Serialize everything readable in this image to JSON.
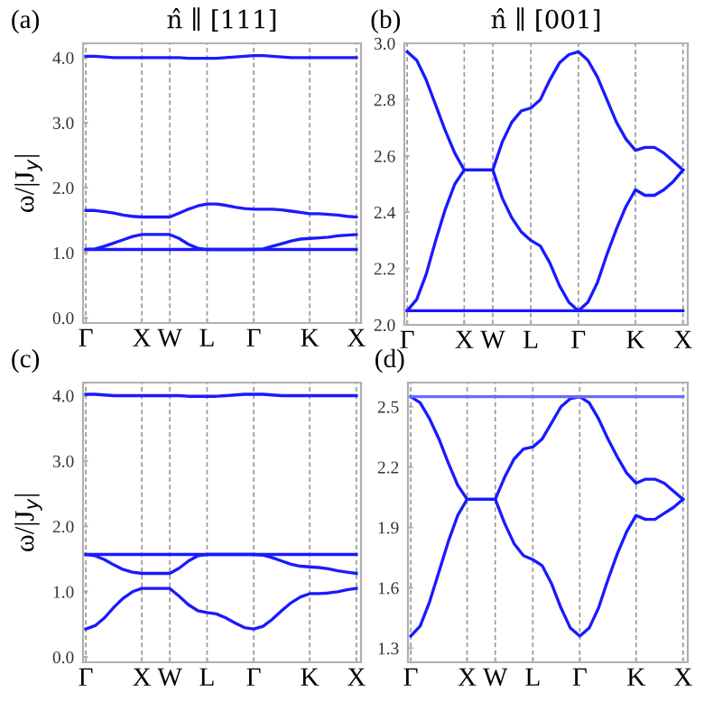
{
  "chart_data": [
    {
      "type": "line",
      "title": "n̂ ∥ [111]",
      "ylabel": "ω/|J$_{y}$|",
      "annotations": [
        "(a)"
      ],
      "grid": "x",
      "categories": [
        "Γ",
        null,
        null,
        null,
        null,
        null,
        "X",
        null,
        null,
        "W",
        null,
        null,
        null,
        "L",
        null,
        null,
        null,
        null,
        "Γ",
        null,
        null,
        null,
        null,
        null,
        "K",
        null,
        null,
        null,
        null,
        "X"
      ],
      "ylim": [
        -0.08,
        4.22
      ],
      "yticks": [
        {
          "value": 0,
          "label": "0.0"
        },
        {
          "value": 1,
          "label": "1.0"
        },
        {
          "value": 2,
          "label": "2.0"
        },
        {
          "value": 3,
          "label": "3.0"
        },
        {
          "value": 4,
          "label": "4.0"
        }
      ],
      "series": [
        {
          "color": "#1a1aff",
          "values": [
            1.05,
            1.05,
            1.05,
            1.05,
            1.05,
            1.05,
            1.05,
            1.05,
            1.05,
            1.05,
            1.05,
            1.05,
            1.05,
            1.05,
            1.05,
            1.05,
            1.05,
            1.05,
            1.05,
            1.05,
            1.05,
            1.05,
            1.05,
            1.05,
            1.05,
            1.05,
            1.05,
            1.05,
            1.05,
            1.05
          ]
        },
        {
          "color": "#1a1aff",
          "values": [
            1.05,
            1.06,
            1.1,
            1.15,
            1.2,
            1.25,
            1.28,
            1.28,
            1.28,
            1.28,
            1.22,
            1.13,
            1.07,
            1.05,
            1.05,
            1.05,
            1.05,
            1.05,
            1.05,
            1.06,
            1.1,
            1.14,
            1.18,
            1.21,
            1.22,
            1.23,
            1.24,
            1.26,
            1.27,
            1.28
          ]
        },
        {
          "color": "#1a1aff",
          "values": [
            1.65,
            1.65,
            1.63,
            1.61,
            1.58,
            1.56,
            1.55,
            1.55,
            1.55,
            1.55,
            1.61,
            1.67,
            1.72,
            1.75,
            1.75,
            1.73,
            1.7,
            1.68,
            1.67,
            1.67,
            1.67,
            1.66,
            1.64,
            1.62,
            1.6,
            1.6,
            1.59,
            1.58,
            1.56,
            1.55
          ]
        },
        {
          "color": "#1a1aff",
          "values": [
            4.02,
            4.02,
            4.01,
            4.0,
            4.0,
            4.0,
            4.0,
            4.0,
            4.0,
            4.0,
            4.0,
            3.99,
            3.99,
            3.99,
            3.99,
            4.0,
            4.01,
            4.02,
            4.03,
            4.03,
            4.02,
            4.01,
            4.0,
            4.0,
            4.0,
            4.0,
            4.0,
            4.0,
            4.0,
            4.0
          ]
        }
      ]
    },
    {
      "type": "line",
      "title": "n̂ ∥ [001]",
      "annotations": [
        "(b)"
      ],
      "grid": "x",
      "categories": [
        "Γ",
        null,
        null,
        null,
        null,
        null,
        "X",
        null,
        null,
        "W",
        null,
        null,
        null,
        "L",
        null,
        null,
        null,
        null,
        "Γ",
        null,
        null,
        null,
        null,
        null,
        "K",
        null,
        null,
        null,
        null,
        "X"
      ],
      "ylim": [
        2.0,
        3.0
      ],
      "yticks": [
        {
          "value": 2.0,
          "label": "2.0"
        },
        2.2,
        2.4,
        2.6,
        2.8,
        {
          "value": 3.0,
          "label": "3.0"
        }
      ],
      "series": [
        {
          "color": "#1a1aff",
          "values": [
            2.05,
            2.05,
            2.05,
            2.05,
            2.05,
            2.05,
            2.05,
            2.05,
            2.05,
            2.05,
            2.05,
            2.05,
            2.05,
            2.05,
            2.05,
            2.05,
            2.05,
            2.05,
            2.05,
            2.05,
            2.05,
            2.05,
            2.05,
            2.05,
            2.05,
            2.05,
            2.05,
            2.05,
            2.05,
            2.05
          ]
        },
        {
          "color": "#1a1aff",
          "values": [
            2.05,
            2.09,
            2.18,
            2.3,
            2.41,
            2.5,
            2.55,
            2.55,
            2.55,
            2.55,
            2.45,
            2.38,
            2.33,
            2.3,
            2.28,
            2.22,
            2.14,
            2.08,
            2.05,
            2.08,
            2.15,
            2.25,
            2.34,
            2.42,
            2.48,
            2.46,
            2.46,
            2.48,
            2.51,
            2.55
          ]
        },
        {
          "color": "#1a1aff",
          "values": [
            2.97,
            2.94,
            2.87,
            2.78,
            2.69,
            2.61,
            2.55,
            2.55,
            2.55,
            2.55,
            2.65,
            2.72,
            2.76,
            2.77,
            2.8,
            2.87,
            2.93,
            2.96,
            2.97,
            2.94,
            2.88,
            2.8,
            2.72,
            2.66,
            2.62,
            2.63,
            2.63,
            2.61,
            2.58,
            2.55
          ]
        }
      ]
    },
    {
      "type": "line",
      "ylabel": "ω/|J$_{y}$|",
      "annotations": [
        "(c)"
      ],
      "grid": "x",
      "categories": [
        "Γ",
        null,
        null,
        null,
        null,
        null,
        "X",
        null,
        null,
        "W",
        null,
        null,
        null,
        "L",
        null,
        null,
        null,
        null,
        "Γ",
        null,
        null,
        null,
        null,
        null,
        "K",
        null,
        null,
        null,
        null,
        "X"
      ],
      "ylim": [
        -0.08,
        4.2
      ],
      "yticks": [
        {
          "value": 0,
          "label": "0.0"
        },
        {
          "value": 1,
          "label": "1.0"
        },
        {
          "value": 2,
          "label": "2.0"
        },
        {
          "value": 3,
          "label": "3.0"
        },
        {
          "value": 4,
          "label": "4.0"
        }
      ],
      "series": [
        {
          "color": "#1a1aff",
          "values": [
            0.43,
            0.48,
            0.6,
            0.76,
            0.9,
            1.0,
            1.05,
            1.05,
            1.05,
            1.05,
            0.93,
            0.8,
            0.71,
            0.68,
            0.66,
            0.6,
            0.52,
            0.45,
            0.43,
            0.47,
            0.58,
            0.71,
            0.83,
            0.92,
            0.97,
            0.97,
            0.98,
            1.0,
            1.03,
            1.05
          ]
        },
        {
          "color": "#1a1aff",
          "values": [
            1.57,
            1.55,
            1.49,
            1.41,
            1.34,
            1.3,
            1.28,
            1.28,
            1.28,
            1.28,
            1.36,
            1.47,
            1.55,
            1.57,
            1.57,
            1.57,
            1.57,
            1.57,
            1.57,
            1.56,
            1.52,
            1.47,
            1.42,
            1.39,
            1.38,
            1.37,
            1.35,
            1.32,
            1.3,
            1.28
          ]
        },
        {
          "color": "#1a1aff",
          "values": [
            1.57,
            1.57,
            1.57,
            1.57,
            1.57,
            1.57,
            1.57,
            1.57,
            1.57,
            1.57,
            1.57,
            1.57,
            1.57,
            1.57,
            1.57,
            1.57,
            1.57,
            1.57,
            1.57,
            1.57,
            1.57,
            1.57,
            1.57,
            1.57,
            1.57,
            1.57,
            1.57,
            1.57,
            1.57,
            1.57
          ]
        },
        {
          "color": "#1a1aff",
          "values": [
            4.02,
            4.02,
            4.01,
            4.0,
            4.0,
            4.0,
            4.0,
            4.0,
            4.0,
            4.0,
            4.0,
            3.99,
            3.99,
            3.99,
            3.99,
            4.0,
            4.01,
            4.02,
            4.02,
            4.02,
            4.01,
            4.0,
            4.0,
            4.0,
            4.0,
            4.0,
            4.0,
            4.0,
            4.0,
            4.0
          ]
        }
      ]
    },
    {
      "type": "line",
      "annotations": [
        "(d)"
      ],
      "grid": "x",
      "categories": [
        "Γ",
        null,
        null,
        null,
        null,
        null,
        "X",
        null,
        null,
        "W",
        null,
        null,
        null,
        "L",
        null,
        null,
        null,
        null,
        "Γ",
        null,
        null,
        null,
        null,
        null,
        "K",
        null,
        null,
        null,
        null,
        "X"
      ],
      "ylim": [
        1.23,
        2.62
      ],
      "yticks": [
        1.3,
        1.6,
        1.9,
        2.2,
        2.5
      ],
      "series": [
        {
          "color": "#1a1aff",
          "values": [
            1.36,
            1.41,
            1.53,
            1.68,
            1.83,
            1.96,
            2.04,
            2.04,
            2.04,
            2.04,
            1.92,
            1.82,
            1.76,
            1.74,
            1.71,
            1.62,
            1.5,
            1.4,
            1.36,
            1.4,
            1.5,
            1.64,
            1.77,
            1.88,
            1.96,
            1.94,
            1.94,
            1.97,
            2.0,
            2.04
          ]
        },
        {
          "color": "#1a1aff",
          "values": [
            2.55,
            2.52,
            2.44,
            2.34,
            2.22,
            2.11,
            2.04,
            2.04,
            2.04,
            2.04,
            2.15,
            2.24,
            2.29,
            2.3,
            2.34,
            2.42,
            2.5,
            2.54,
            2.55,
            2.52,
            2.44,
            2.34,
            2.25,
            2.17,
            2.12,
            2.14,
            2.14,
            2.12,
            2.08,
            2.04
          ]
        },
        {
          "color": "#6a6aff",
          "values": [
            2.55,
            2.55,
            2.55,
            2.55,
            2.55,
            2.55,
            2.55,
            2.55,
            2.55,
            2.55,
            2.55,
            2.55,
            2.55,
            2.55,
            2.55,
            2.55,
            2.55,
            2.55,
            2.55,
            2.55,
            2.55,
            2.55,
            2.55,
            2.55,
            2.55,
            2.55,
            2.55,
            2.55,
            2.55,
            2.55
          ]
        }
      ]
    }
  ]
}
